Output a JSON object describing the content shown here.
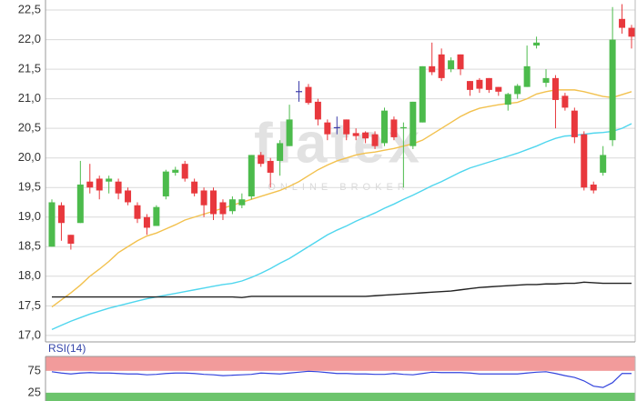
{
  "chart_data": {
    "type": "candlestick",
    "watermark": {
      "title": "flatex",
      "subtitle": "ONLINE BROKER"
    },
    "ohlc": {
      "open": [
        18.5,
        19.2,
        18.7,
        18.9,
        19.6,
        19.65,
        19.6,
        19.6,
        19.45,
        19.2,
        19.0,
        18.85,
        19.35,
        19.75,
        19.9,
        19.6,
        19.45,
        19.45,
        19.25,
        19.1,
        19.2,
        19.35,
        20.05,
        19.95,
        19.95,
        20.2,
        21.13,
        21.2,
        20.95,
        20.6,
        20.52,
        20.65,
        20.42,
        20.43,
        20.4,
        20.25,
        20.65,
        20.5,
        20.2,
        20.6,
        21.55,
        21.75,
        21.5,
        21.75,
        21.3,
        21.32,
        21.35,
        21.2,
        20.9,
        21.08,
        21.2,
        21.9,
        21.27,
        21.35,
        21.05,
        20.8,
        20.4,
        19.55,
        19.75,
        20.3,
        22.35,
        22.2
      ],
      "high": [
        19.3,
        19.25,
        18.7,
        19.95,
        19.9,
        19.7,
        19.7,
        19.65,
        19.5,
        19.25,
        19.05,
        19.2,
        19.8,
        19.85,
        19.95,
        19.65,
        19.5,
        19.5,
        19.3,
        19.35,
        19.4,
        20.05,
        20.1,
        20.0,
        20.3,
        20.9,
        21.3,
        21.25,
        21.0,
        20.65,
        20.7,
        20.65,
        20.5,
        20.45,
        20.45,
        20.85,
        20.7,
        20.6,
        20.95,
        21.55,
        21.95,
        21.85,
        21.7,
        21.75,
        21.3,
        21.35,
        21.35,
        21.2,
        21.1,
        21.25,
        21.9,
        22.05,
        21.5,
        21.4,
        21.1,
        20.85,
        20.45,
        19.6,
        20.2,
        22.55,
        22.6,
        22.25
      ],
      "low": [
        18.5,
        18.6,
        18.45,
        18.9,
        19.4,
        19.3,
        19.4,
        19.3,
        19.2,
        18.9,
        18.7,
        18.85,
        19.3,
        19.7,
        19.6,
        19.35,
        19.0,
        18.95,
        18.95,
        19.05,
        19.15,
        19.3,
        19.85,
        19.5,
        19.7,
        20.2,
        20.95,
        20.9,
        20.55,
        20.3,
        20.4,
        20.3,
        20.3,
        20.25,
        20.15,
        20.2,
        20.3,
        19.5,
        20.15,
        20.6,
        21.4,
        21.3,
        21.45,
        21.4,
        21.05,
        21.1,
        21.1,
        21.05,
        20.8,
        21.0,
        21.2,
        21.85,
        21.2,
        20.5,
        20.8,
        20.25,
        19.45,
        19.4,
        19.7,
        20.2,
        22.1,
        21.85
      ],
      "close": [
        19.25,
        18.9,
        18.55,
        19.55,
        19.5,
        19.45,
        19.65,
        19.4,
        19.25,
        18.97,
        18.82,
        19.17,
        19.77,
        19.8,
        19.65,
        19.4,
        19.2,
        19.05,
        19.05,
        19.3,
        19.3,
        20.05,
        19.9,
        19.75,
        20.25,
        20.65,
        21.13,
        20.93,
        20.65,
        20.4,
        20.52,
        20.4,
        20.37,
        20.33,
        20.2,
        20.8,
        20.35,
        20.52,
        20.95,
        21.55,
        21.45,
        21.35,
        21.65,
        21.5,
        21.15,
        21.17,
        21.15,
        21.12,
        21.08,
        21.22,
        21.55,
        21.95,
        21.35,
        20.98,
        20.85,
        20.35,
        19.5,
        19.45,
        20.05,
        22.0,
        22.2,
        22.05
      ]
    },
    "up_color": "#4cbb4c",
    "down_color": "#e8383d",
    "flat_color": "#3a3aa8",
    "series": [
      {
        "color": "#f2c14e",
        "values": [
          17.48,
          17.6,
          17.72,
          17.85,
          18.0,
          18.12,
          18.25,
          18.4,
          18.5,
          18.6,
          18.68,
          18.73,
          18.8,
          18.87,
          18.95,
          19.0,
          19.05,
          19.1,
          19.15,
          19.2,
          19.25,
          19.3,
          19.35,
          19.4,
          19.45,
          19.52,
          19.6,
          19.7,
          19.8,
          19.88,
          19.95,
          20.0,
          20.05,
          20.08,
          20.1,
          20.13,
          20.16,
          20.2,
          20.24,
          20.3,
          20.4,
          20.5,
          20.6,
          20.7,
          20.78,
          20.84,
          20.87,
          20.9,
          20.92,
          20.94,
          21.0,
          21.08,
          21.12,
          21.15,
          21.15,
          21.15,
          21.12,
          21.08,
          21.04,
          21.02,
          21.07,
          21.12
        ]
      },
      {
        "color": "#4fd6ee",
        "values": [
          17.1,
          17.17,
          17.24,
          17.3,
          17.36,
          17.41,
          17.46,
          17.5,
          17.54,
          17.58,
          17.62,
          17.65,
          17.68,
          17.71,
          17.74,
          17.77,
          17.8,
          17.83,
          17.86,
          17.88,
          17.92,
          17.98,
          18.05,
          18.13,
          18.22,
          18.3,
          18.4,
          18.5,
          18.6,
          18.7,
          18.78,
          18.85,
          18.93,
          19.0,
          19.07,
          19.15,
          19.22,
          19.3,
          19.37,
          19.45,
          19.53,
          19.6,
          19.68,
          19.76,
          19.83,
          19.88,
          19.93,
          19.98,
          20.03,
          20.08,
          20.14,
          20.2,
          20.27,
          20.33,
          20.37,
          20.38,
          20.4,
          20.42,
          20.43,
          20.45,
          20.5,
          20.58
        ]
      },
      {
        "color": "#222222",
        "values": [
          17.65,
          17.65,
          17.65,
          17.65,
          17.65,
          17.65,
          17.65,
          17.65,
          17.65,
          17.65,
          17.65,
          17.65,
          17.65,
          17.65,
          17.65,
          17.65,
          17.65,
          17.65,
          17.65,
          17.65,
          17.64,
          17.66,
          17.66,
          17.66,
          17.66,
          17.66,
          17.66,
          17.66,
          17.66,
          17.66,
          17.66,
          17.66,
          17.66,
          17.66,
          17.67,
          17.68,
          17.69,
          17.7,
          17.71,
          17.72,
          17.73,
          17.74,
          17.75,
          17.77,
          17.79,
          17.81,
          17.82,
          17.83,
          17.84,
          17.85,
          17.86,
          17.86,
          17.87,
          17.87,
          17.88,
          17.88,
          17.9,
          17.89,
          17.88,
          17.88,
          17.88,
          17.88
        ]
      }
    ],
    "ylim": [
      16.89,
      22.67
    ],
    "yticks": [
      {
        "value": 17.0,
        "label": "17,0"
      },
      {
        "value": 17.5,
        "label": "17,5"
      },
      {
        "value": 18.0,
        "label": "18,0"
      },
      {
        "value": 18.5,
        "label": "18,5"
      },
      {
        "value": 19.0,
        "label": "19,0"
      },
      {
        "value": 19.5,
        "label": "19,5"
      },
      {
        "value": 20.0,
        "label": "20,0"
      },
      {
        "value": 20.5,
        "label": "20,5"
      },
      {
        "value": 21.0,
        "label": "21,0"
      },
      {
        "value": 21.5,
        "label": "21,5"
      },
      {
        "value": 22.0,
        "label": "22,0"
      },
      {
        "value": 22.5,
        "label": "22,5"
      }
    ],
    "grid": true,
    "rsi": {
      "label": "RSI(14)",
      "color": "#3344dd",
      "overbought_color": "#f08a8a",
      "oversold_color": "#6cc46c",
      "ylim": [
        6,
        108
      ],
      "yticks": [
        75,
        25
      ],
      "values": [
        73,
        70,
        68,
        70,
        71,
        70,
        70,
        69,
        68,
        68,
        66,
        67,
        69,
        70,
        70,
        69,
        67,
        66,
        64,
        65,
        66,
        67,
        70,
        69,
        68,
        70,
        72,
        74,
        73,
        71,
        69,
        69,
        68,
        68,
        67,
        67,
        69,
        67,
        66,
        69,
        72,
        71,
        71,
        71,
        70,
        68,
        68,
        68,
        68,
        68,
        70,
        72,
        73,
        69,
        64,
        60,
        52,
        40,
        37,
        48,
        69,
        69
      ]
    }
  }
}
